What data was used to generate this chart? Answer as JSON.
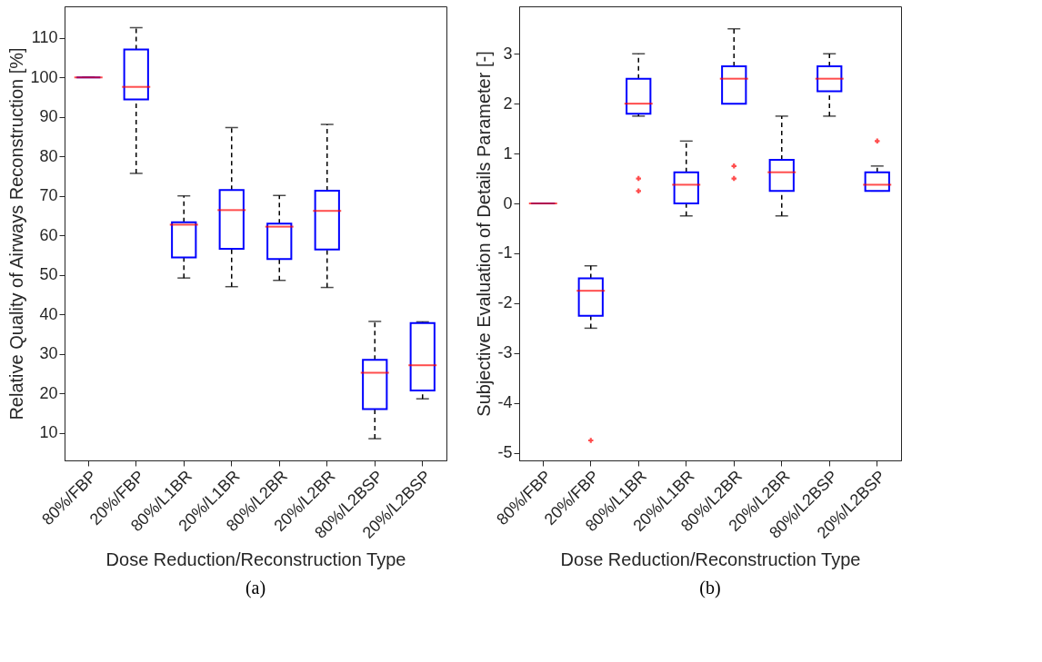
{
  "chart_data": [
    {
      "type": "box",
      "xlabel": "Dose Reduction/Reconstruction Type",
      "ylabel": "Relative Quality of Airways Reconstruction [%]",
      "categories": [
        "80%/FBP",
        "20%/FBP",
        "80%/L1BR",
        "20%/L1BR",
        "80%/L2BR",
        "20%/L2BR",
        "80%/L2BSP",
        "20%/L2BSP"
      ],
      "boxes": [
        {
          "low": 100,
          "q1": 100,
          "median": 100,
          "q3": 100,
          "high": 100
        },
        {
          "low": 75.7,
          "q1": 94.4,
          "median": 97.6,
          "q3": 107.1,
          "high": 112.6
        },
        {
          "low": 49.2,
          "q1": 54.4,
          "median": 62.7,
          "q3": 63.3,
          "high": 70
        },
        {
          "low": 47,
          "q1": 56.6,
          "median": 66.4,
          "q3": 71.5,
          "high": 87.3
        },
        {
          "low": 48.6,
          "q1": 54,
          "median": 62.2,
          "q3": 63,
          "high": 70.1
        },
        {
          "low": 46.8,
          "q1": 56.4,
          "median": 66.2,
          "q3": 71.3,
          "high": 88.1
        },
        {
          "low": 8.5,
          "q1": 16,
          "median": 25.2,
          "q3": 28.5,
          "high": 38.2
        },
        {
          "low": 18.6,
          "q1": 20.7,
          "median": 27.1,
          "q3": 37.8,
          "high": 38.1
        }
      ],
      "ylim": [
        3,
        118
      ],
      "yticks": [
        10,
        20,
        30,
        40,
        50,
        60,
        70,
        80,
        90,
        100,
        110
      ],
      "grid": false,
      "annotations": [
        "(a)"
      ]
    },
    {
      "type": "box",
      "xlabel": "Dose Reduction/Reconstruction Type",
      "ylabel": "Subjective Evaluation of Details Parameter [-]",
      "categories": [
        "80%/FBP",
        "20%/FBP",
        "80%/L1BR",
        "20%/L1BR",
        "80%/L2BR",
        "20%/L2BR",
        "80%/L2BSP",
        "20%/L2BSP"
      ],
      "boxes": [
        {
          "low": 0,
          "q1": 0,
          "median": 0,
          "q3": 0,
          "high": 0
        },
        {
          "low": -2.5,
          "q1": -2.25,
          "median": -1.75,
          "q3": -1.5,
          "high": -1.25,
          "outliers": [
            -4.75
          ]
        },
        {
          "low": 1.75,
          "q1": 1.8,
          "median": 2,
          "q3": 2.5,
          "high": 3,
          "outliers": [
            0.5,
            0.25
          ]
        },
        {
          "low": -0.25,
          "q1": 0,
          "median": 0.375,
          "q3": 0.625,
          "high": 1.25
        },
        {
          "low": 2,
          "q1": 2,
          "median": 2.5,
          "q3": 2.75,
          "high": 3.5,
          "outliers": [
            0.75,
            0.5
          ]
        },
        {
          "low": -0.25,
          "q1": 0.25,
          "median": 0.625,
          "q3": 0.875,
          "high": 1.75
        },
        {
          "low": 1.75,
          "q1": 2.25,
          "median": 2.5,
          "q3": 2.75,
          "high": 3
        },
        {
          "low": 0.25,
          "q1": 0.25,
          "median": 0.375,
          "q3": 0.625,
          "high": 0.75,
          "outliers": [
            1.25
          ]
        }
      ],
      "ylim": [
        -5.15,
        3.95
      ],
      "yticks": [
        -5,
        -4,
        -3,
        -2,
        -1,
        0,
        1,
        2,
        3
      ],
      "grid": false,
      "annotations": [
        "(b)"
      ]
    }
  ]
}
